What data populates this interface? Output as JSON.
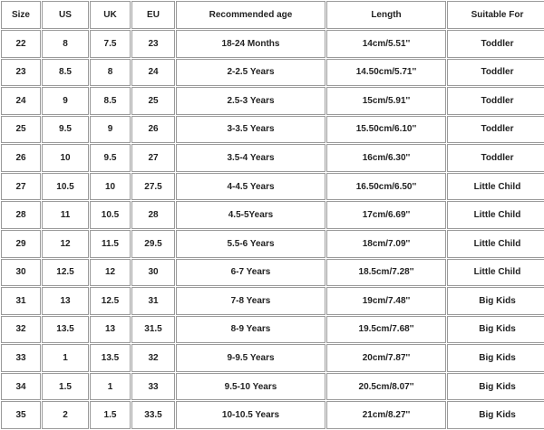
{
  "table": {
    "header": [
      "Size",
      "US",
      "UK",
      "EU",
      "Recommended age",
      "Length",
      "Suitable For"
    ],
    "rows": [
      [
        "22",
        "8",
        "7.5",
        "23",
        "18-24 Months",
        "14cm/5.51''",
        "Toddler"
      ],
      [
        "23",
        "8.5",
        "8",
        "24",
        "2-2.5 Years",
        "14.50cm/5.71''",
        "Toddler"
      ],
      [
        "24",
        "9",
        "8.5",
        "25",
        "2.5-3 Years",
        "15cm/5.91''",
        "Toddler"
      ],
      [
        "25",
        "9.5",
        "9",
        "26",
        "3-3.5 Years",
        "15.50cm/6.10''",
        "Toddler"
      ],
      [
        "26",
        "10",
        "9.5",
        "27",
        "3.5-4 Years",
        "16cm/6.30''",
        "Toddler"
      ],
      [
        "27",
        "10.5",
        "10",
        "27.5",
        "4-4.5 Years",
        "16.50cm/6.50''",
        "Little Child"
      ],
      [
        "28",
        "11",
        "10.5",
        "28",
        "4.5-5Years",
        "17cm/6.69''",
        "Little Child"
      ],
      [
        "29",
        "12",
        "11.5",
        "29.5",
        "5.5-6 Years",
        "18cm/7.09''",
        "Little Child"
      ],
      [
        "30",
        "12.5",
        "12",
        "30",
        "6-7 Years",
        "18.5cm/7.28''",
        "Little Child"
      ],
      [
        "31",
        "13",
        "12.5",
        "31",
        "7-8 Years",
        "19cm/7.48''",
        "Big Kids"
      ],
      [
        "32",
        "13.5",
        "13",
        "31.5",
        "8-9 Years",
        "19.5cm/7.68''",
        "Big Kids"
      ],
      [
        "33",
        "1",
        "13.5",
        "32",
        "9-9.5 Years",
        "20cm/7.87''",
        "Big Kids"
      ],
      [
        "34",
        "1.5",
        "1",
        "33",
        "9.5-10 Years",
        "20.5cm/8.07''",
        "Big Kids"
      ],
      [
        "35",
        "2",
        "1.5",
        "33.5",
        "10-10.5 Years",
        "21cm/8.27''",
        "Big Kids"
      ]
    ]
  }
}
